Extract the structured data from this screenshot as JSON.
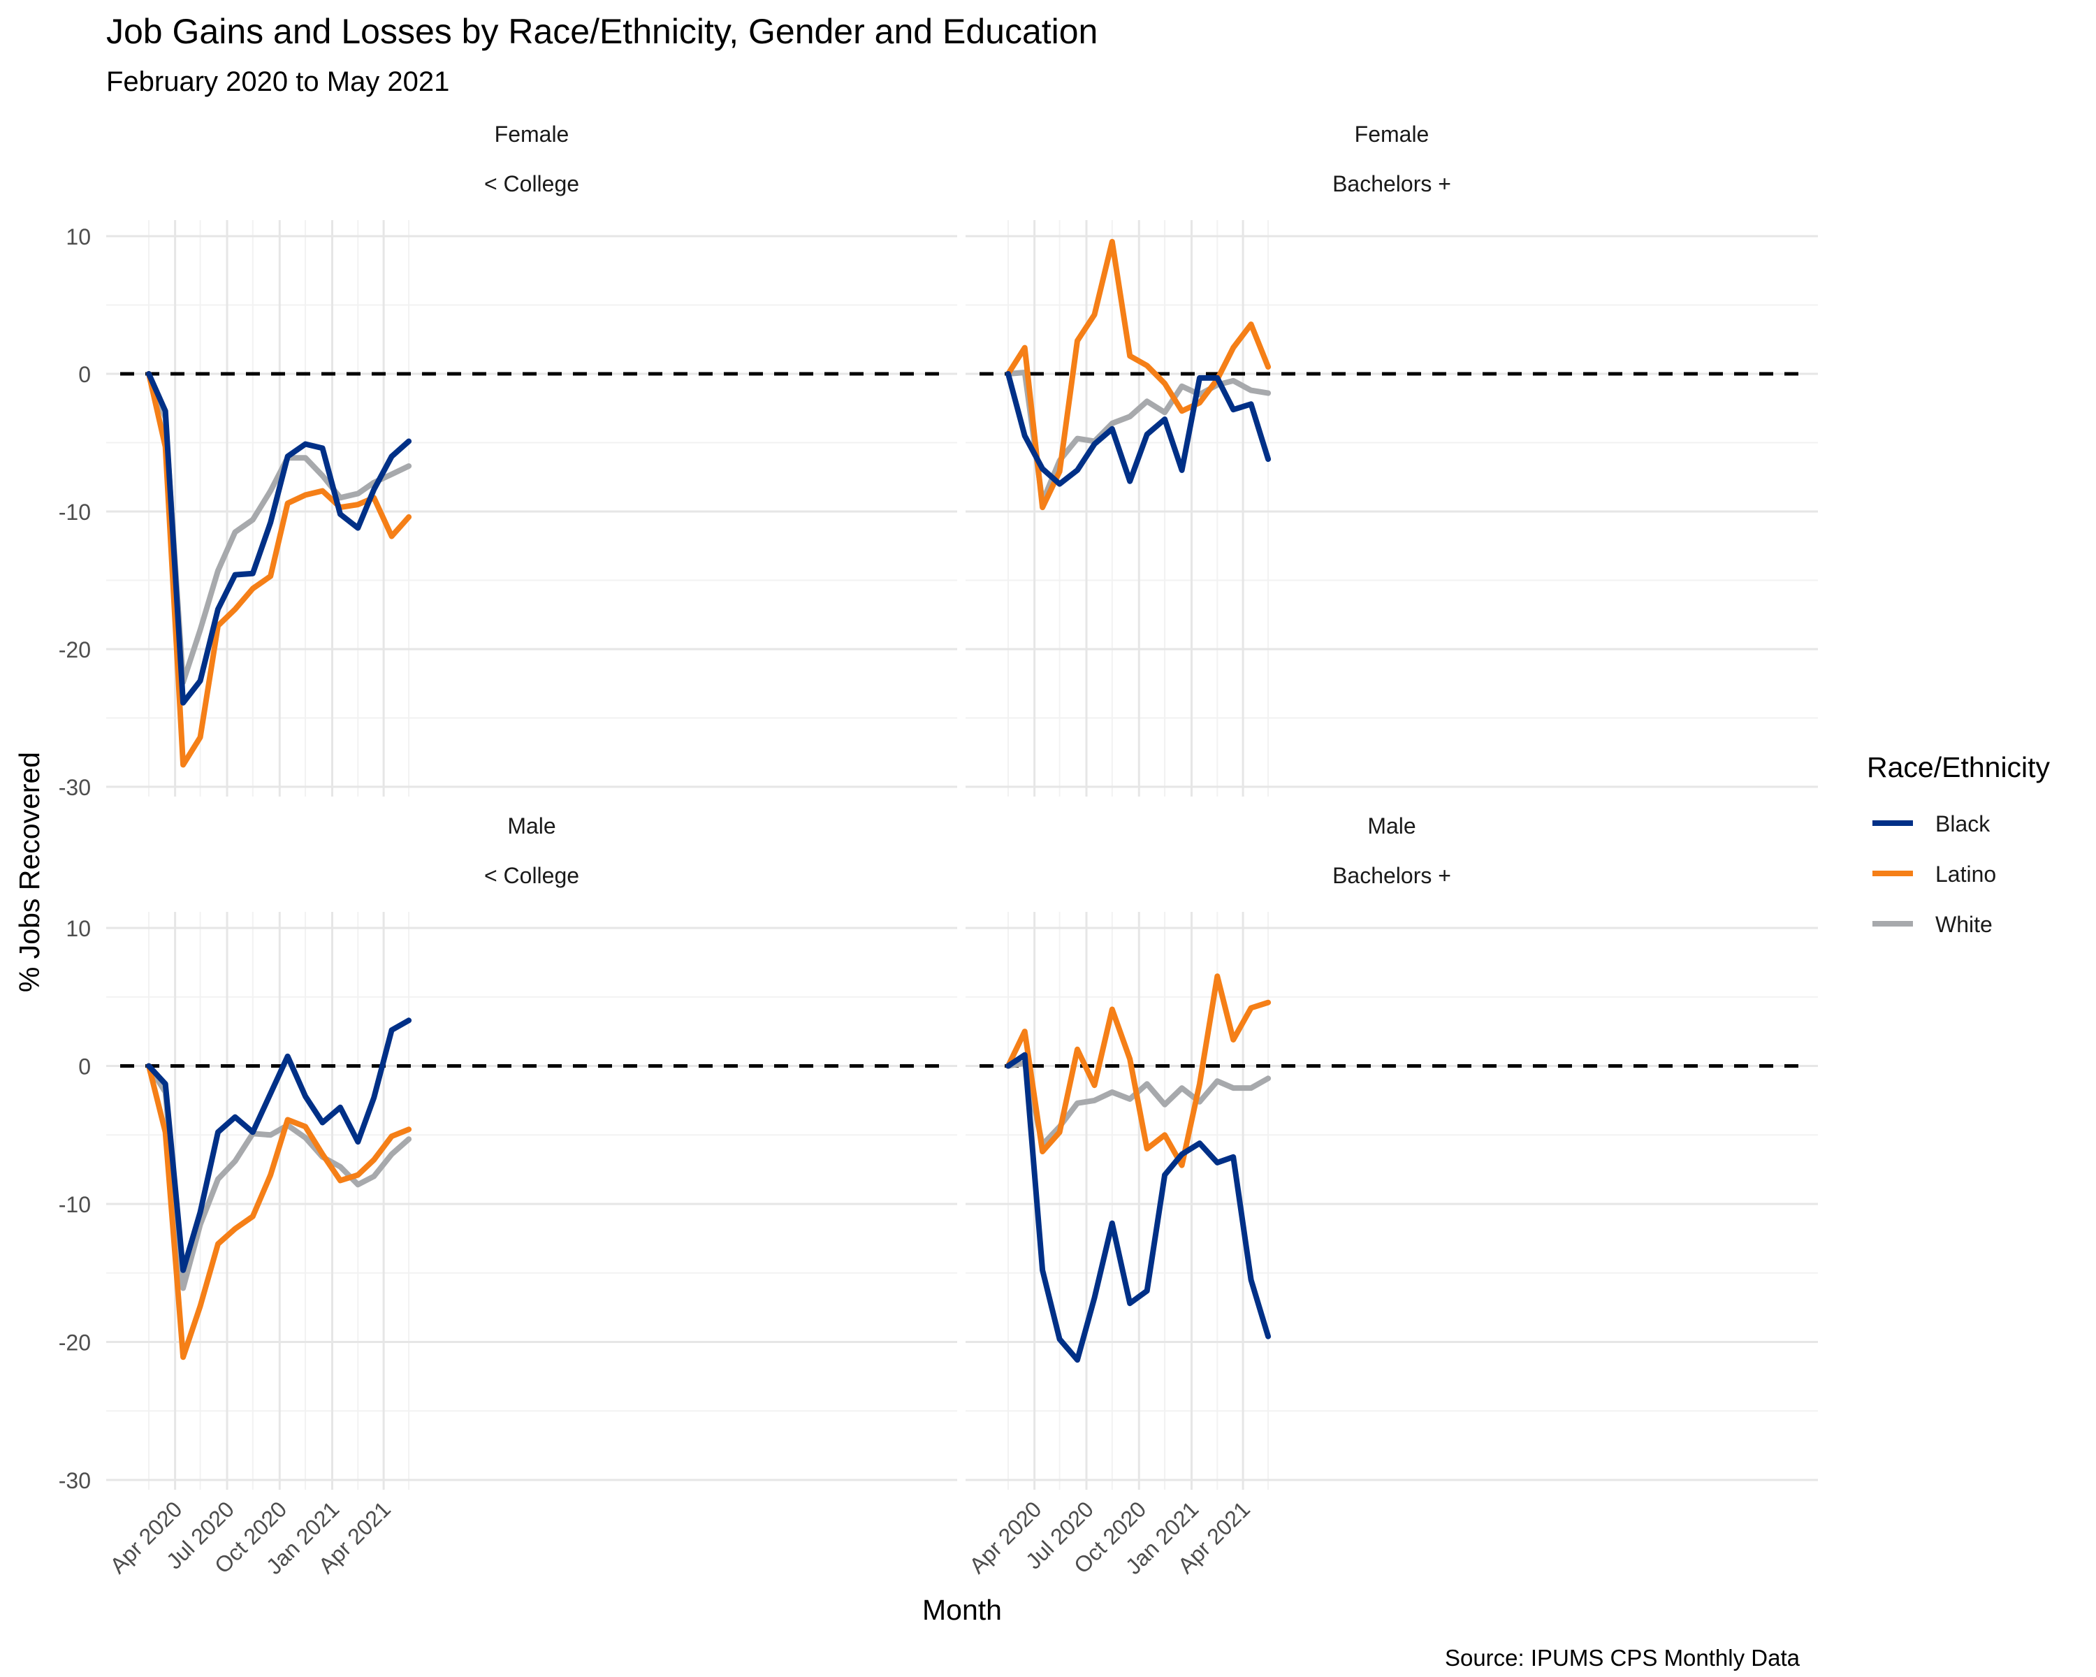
{
  "chart_data": {
    "type": "line",
    "title": "Job Gains and Losses by Race/Ethnicity, Gender and Education",
    "subtitle": "February 2020 to May 2021",
    "xlabel": "Month",
    "ylabel": "% Jobs Recovered",
    "caption": "Source: IPUMS CPS Monthly Data",
    "legend_title": "Race/Ethnicity",
    "legend_position": "right",
    "grid": true,
    "reference_line": 0,
    "ylim": [
      -30,
      10
    ],
    "y_ticks": [
      "10",
      "0",
      "-10",
      "-20",
      "-30"
    ],
    "x_ticks": [
      "Apr 2020",
      "Jul 2020",
      "Oct 2020",
      "Jan 2021",
      "Apr 2021"
    ],
    "months": [
      "2020-02",
      "2020-03",
      "2020-04",
      "2020-05",
      "2020-06",
      "2020-07",
      "2020-08",
      "2020-09",
      "2020-10",
      "2020-11",
      "2020-12",
      "2021-01",
      "2021-02",
      "2021-03",
      "2021-04",
      "2021-05"
    ],
    "colors": {
      "Black": "#003087",
      "Latino": "#F57F17",
      "White": "#A7A9AC"
    },
    "legend": [
      "Black",
      "Latino",
      "White"
    ],
    "panels": [
      {
        "gender": "Female",
        "education": "< College",
        "series": [
          {
            "name": "Black",
            "values": [
              0,
              -2.7,
              -23.9,
              -22.3,
              -17.1,
              -14.6,
              -14.5,
              -10.8,
              -6.0,
              -5.1,
              -5.4,
              -10.2,
              -11.2,
              -8.4,
              -6.0,
              -4.9
            ]
          },
          {
            "name": "Latino",
            "values": [
              0,
              -5.3,
              -28.4,
              -26.4,
              -18.3,
              -17.1,
              -15.6,
              -14.7,
              -9.4,
              -8.8,
              -8.5,
              -9.7,
              -9.5,
              -9.0,
              -11.8,
              -10.4
            ]
          },
          {
            "name": "White",
            "values": [
              0,
              -3.2,
              -22.4,
              -18.6,
              -14.3,
              -11.5,
              -10.6,
              -8.5,
              -6.1,
              -6.1,
              -7.4,
              -9.0,
              -8.7,
              -7.9,
              -7.3,
              -6.7
            ]
          }
        ]
      },
      {
        "gender": "Female",
        "education": "Bachelors +",
        "series": [
          {
            "name": "Black",
            "values": [
              0,
              -4.5,
              -6.9,
              -8.0,
              -7.0,
              -5.1,
              -4.0,
              -7.8,
              -4.4,
              -3.3,
              -7.0,
              -0.3,
              -0.3,
              -2.6,
              -2.2,
              -6.2
            ]
          },
          {
            "name": "Latino",
            "values": [
              0,
              1.9,
              -9.7,
              -7.1,
              2.4,
              4.3,
              9.6,
              1.3,
              0.6,
              -0.7,
              -2.7,
              -2.1,
              -0.4,
              1.9,
              3.6,
              0.5
            ]
          },
          {
            "name": "White",
            "values": [
              0,
              0.1,
              -9.3,
              -6.3,
              -4.7,
              -4.9,
              -3.6,
              -3.1,
              -2.0,
              -2.8,
              -0.9,
              -1.5,
              -0.8,
              -0.5,
              -1.2,
              -1.4
            ]
          }
        ]
      },
      {
        "gender": "Male",
        "education": "< College",
        "series": [
          {
            "name": "Black",
            "values": [
              0,
              -1.3,
              -14.8,
              -10.6,
              -4.8,
              -3.7,
              -4.8,
              -2.0,
              0.7,
              -2.2,
              -4.1,
              -3.0,
              -5.5,
              -2.3,
              2.6,
              3.3
            ]
          },
          {
            "name": "Latino",
            "values": [
              0,
              -4.8,
              -21.1,
              -17.4,
              -12.9,
              -11.8,
              -10.9,
              -7.9,
              -3.9,
              -4.4,
              -6.4,
              -8.3,
              -7.9,
              -6.8,
              -5.1,
              -4.6
            ]
          },
          {
            "name": "White",
            "values": [
              0,
              -1.9,
              -16.1,
              -11.5,
              -8.2,
              -6.9,
              -4.9,
              -5.0,
              -4.3,
              -5.2,
              -6.6,
              -7.3,
              -8.6,
              -8.0,
              -6.4,
              -5.3
            ]
          }
        ]
      },
      {
        "gender": "Male",
        "education": "Bachelors +",
        "series": [
          {
            "name": "Black",
            "values": [
              0,
              0.8,
              -14.8,
              -19.8,
              -21.3,
              -16.8,
              -11.4,
              -17.2,
              -16.3,
              -7.9,
              -6.4,
              -5.6,
              -7.0,
              -6.6,
              -15.5,
              -19.6
            ]
          },
          {
            "name": "Latino",
            "values": [
              0,
              2.5,
              -6.2,
              -4.8,
              1.2,
              -1.4,
              4.1,
              0.5,
              -6.0,
              -5.0,
              -7.2,
              -1.3,
              6.5,
              1.9,
              4.2,
              4.6
            ]
          },
          {
            "name": "White",
            "values": [
              0,
              0.2,
              -5.7,
              -4.4,
              -2.7,
              -2.5,
              -1.9,
              -2.4,
              -1.3,
              -2.8,
              -1.6,
              -2.6,
              -1.1,
              -1.6,
              -1.6,
              -0.9
            ]
          }
        ]
      }
    ]
  }
}
